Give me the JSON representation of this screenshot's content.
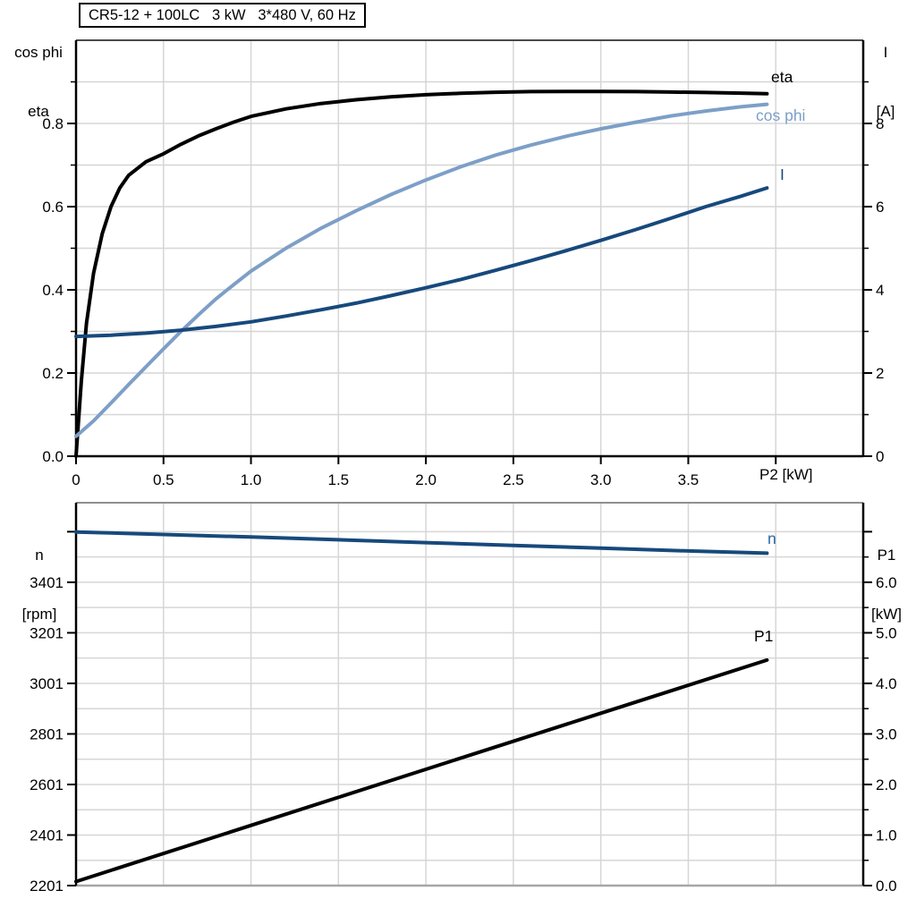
{
  "title_box": {
    "text": "CR5-12 + 100LC   3 kW   3*480 V, 60 Hz"
  },
  "colors": {
    "curve_black": "#000000",
    "curve_dark_blue": "#17497C",
    "curve_light_blue": "#7D9FC7",
    "label_blue": "#2B69A5",
    "grid": "#D6D6D6",
    "axis_black": "#000000",
    "frame_gray_top": "#8F8F8F",
    "frame_gray_bottom": "#A6A6A6",
    "frame_dark": "#4A4A4A"
  },
  "chart_data": [
    {
      "type": "line",
      "title": "CR5-12 + 100LC   3 kW   3*480 V, 60 Hz",
      "x_axis": {
        "label": "P2 [kW]",
        "min": 0,
        "max": 4.5,
        "major_step": 0.5,
        "ticks": [
          {
            "v": 0,
            "t": "0"
          },
          {
            "v": 0.5,
            "t": "0.5"
          },
          {
            "v": 1,
            "t": "1.0"
          },
          {
            "v": 1.5,
            "t": "1.5"
          },
          {
            "v": 2,
            "t": "2.0"
          },
          {
            "v": 2.5,
            "t": "2.5"
          },
          {
            "v": 3,
            "t": "3.0"
          },
          {
            "v": 3.5,
            "t": "3.5"
          },
          {
            "v": 4,
            "t": ""
          }
        ]
      },
      "y_left": {
        "title_lines": [
          "cos phi",
          "eta"
        ],
        "min": 0,
        "max": 1.0,
        "minor_step": 0.1,
        "axis_minor_ticks": true,
        "ticks": [
          {
            "v": 0,
            "t": "0.0"
          },
          {
            "v": 0.2,
            "t": "0.2"
          },
          {
            "v": 0.4,
            "t": "0.4"
          },
          {
            "v": 0.6,
            "t": "0.6"
          },
          {
            "v": 0.8,
            "t": "0.8"
          }
        ]
      },
      "y_right": {
        "title_lines": [
          "I",
          "[A]"
        ],
        "min": 0,
        "max": 10,
        "minor_step": 1,
        "axis_minor_ticks": true,
        "ticks": [
          {
            "v": 0,
            "t": "0"
          },
          {
            "v": 2,
            "t": "2"
          },
          {
            "v": 4,
            "t": "4"
          },
          {
            "v": 6,
            "t": "6"
          },
          {
            "v": 8,
            "t": "8"
          }
        ]
      },
      "grid": {
        "vertical_step": 0.5,
        "horizontal_step": 0.1
      },
      "series": [
        {
          "name": "eta",
          "color_key": "curve_black",
          "axis": "left",
          "points": [
            [
              0,
              0
            ],
            [
              0.03,
              0.18
            ],
            [
              0.06,
              0.32
            ],
            [
              0.1,
              0.44
            ],
            [
              0.15,
              0.535
            ],
            [
              0.2,
              0.6
            ],
            [
              0.25,
              0.645
            ],
            [
              0.3,
              0.675
            ],
            [
              0.4,
              0.708
            ],
            [
              0.5,
              0.727
            ],
            [
              0.6,
              0.75
            ],
            [
              0.7,
              0.77
            ],
            [
              0.8,
              0.787
            ],
            [
              0.9,
              0.803
            ],
            [
              1.0,
              0.817
            ],
            [
              1.2,
              0.835
            ],
            [
              1.4,
              0.848
            ],
            [
              1.6,
              0.857
            ],
            [
              1.8,
              0.864
            ],
            [
              2.0,
              0.869
            ],
            [
              2.2,
              0.8725
            ],
            [
              2.4,
              0.875
            ],
            [
              2.6,
              0.8765
            ],
            [
              2.8,
              0.877
            ],
            [
              3.0,
              0.877
            ],
            [
              3.2,
              0.8765
            ],
            [
              3.4,
              0.8755
            ],
            [
              3.6,
              0.8745
            ],
            [
              3.8,
              0.873
            ],
            [
              3.95,
              0.8715
            ]
          ]
        },
        {
          "name": "cos phi",
          "color_key": "curve_light_blue",
          "axis": "left",
          "points": [
            [
              0,
              0.048
            ],
            [
              0.1,
              0.085
            ],
            [
              0.2,
              0.128
            ],
            [
              0.3,
              0.172
            ],
            [
              0.4,
              0.215
            ],
            [
              0.5,
              0.258
            ],
            [
              0.6,
              0.3
            ],
            [
              0.7,
              0.34
            ],
            [
              0.8,
              0.378
            ],
            [
              0.9,
              0.412
            ],
            [
              1.0,
              0.445
            ],
            [
              1.2,
              0.5
            ],
            [
              1.4,
              0.548
            ],
            [
              1.6,
              0.59
            ],
            [
              1.8,
              0.629
            ],
            [
              2.0,
              0.664
            ],
            [
              2.2,
              0.696
            ],
            [
              2.4,
              0.724
            ],
            [
              2.6,
              0.748
            ],
            [
              2.8,
              0.769
            ],
            [
              3.0,
              0.787
            ],
            [
              3.2,
              0.803
            ],
            [
              3.4,
              0.818
            ],
            [
              3.6,
              0.83
            ],
            [
              3.8,
              0.84
            ],
            [
              3.95,
              0.846
            ]
          ]
        },
        {
          "name": "I",
          "color_key": "curve_dark_blue",
          "axis": "right",
          "points": [
            [
              0,
              2.88
            ],
            [
              0.2,
              2.91
            ],
            [
              0.4,
              2.96
            ],
            [
              0.6,
              3.03
            ],
            [
              0.8,
              3.12
            ],
            [
              1.0,
              3.23
            ],
            [
              1.2,
              3.37
            ],
            [
              1.4,
              3.52
            ],
            [
              1.6,
              3.68
            ],
            [
              1.8,
              3.86
            ],
            [
              2.0,
              4.05
            ],
            [
              2.2,
              4.25
            ],
            [
              2.4,
              4.47
            ],
            [
              2.6,
              4.7
            ],
            [
              2.8,
              4.94
            ],
            [
              3.0,
              5.19
            ],
            [
              3.2,
              5.45
            ],
            [
              3.4,
              5.72
            ],
            [
              3.6,
              6.0
            ],
            [
              3.8,
              6.25
            ],
            [
              3.95,
              6.45
            ]
          ]
        }
      ]
    },
    {
      "type": "line",
      "x_axis": {
        "label": "",
        "min": 0,
        "max": 4.5,
        "major_step": 0.5,
        "ticks": []
      },
      "y_left": {
        "title_lines": [
          "n",
          "[rpm]"
        ],
        "min": 2201,
        "max": 3601,
        "minor_step": 100,
        "axis_minor_ticks": false,
        "ticks": [
          {
            "v": 2201,
            "t": "2201"
          },
          {
            "v": 2401,
            "t": "2401"
          },
          {
            "v": 2601,
            "t": "2601"
          },
          {
            "v": 2801,
            "t": "2801"
          },
          {
            "v": 3001,
            "t": "3001"
          },
          {
            "v": 3201,
            "t": "3201"
          },
          {
            "v": 3401,
            "t": "3401"
          },
          {
            "v": 3601,
            "t": ""
          }
        ]
      },
      "y_right": {
        "title_lines": [
          "P1",
          "[kW]"
        ],
        "min": 0,
        "max": 7.0,
        "minor_step": 0.5,
        "axis_minor_ticks": true,
        "ticks": [
          {
            "v": 0,
            "t": "0.0"
          },
          {
            "v": 1,
            "t": "1.0"
          },
          {
            "v": 2,
            "t": "2.0"
          },
          {
            "v": 3,
            "t": "3.0"
          },
          {
            "v": 4,
            "t": "4.0"
          },
          {
            "v": 5,
            "t": "5.0"
          },
          {
            "v": 6,
            "t": "6.0"
          },
          {
            "v": 7,
            "t": ""
          }
        ]
      },
      "grid": {
        "vertical_step": 0.5,
        "horizontal_step": 100
      },
      "series": [
        {
          "name": "n",
          "color_key": "curve_dark_blue",
          "axis": "left",
          "points": [
            [
              0,
              3600
            ],
            [
              0.5,
              3590
            ],
            [
              1,
              3580
            ],
            [
              1.5,
              3569
            ],
            [
              2,
              3558
            ],
            [
              2.5,
              3547
            ],
            [
              3,
              3536
            ],
            [
              3.5,
              3525
            ],
            [
              3.95,
              3516
            ]
          ]
        },
        {
          "name": "P1",
          "color_key": "curve_black",
          "axis": "right",
          "points": [
            [
              0,
              0.08
            ],
            [
              1,
              1.19
            ],
            [
              2,
              2.3
            ],
            [
              3,
              3.41
            ],
            [
              3.95,
              4.46
            ]
          ]
        }
      ]
    }
  ]
}
